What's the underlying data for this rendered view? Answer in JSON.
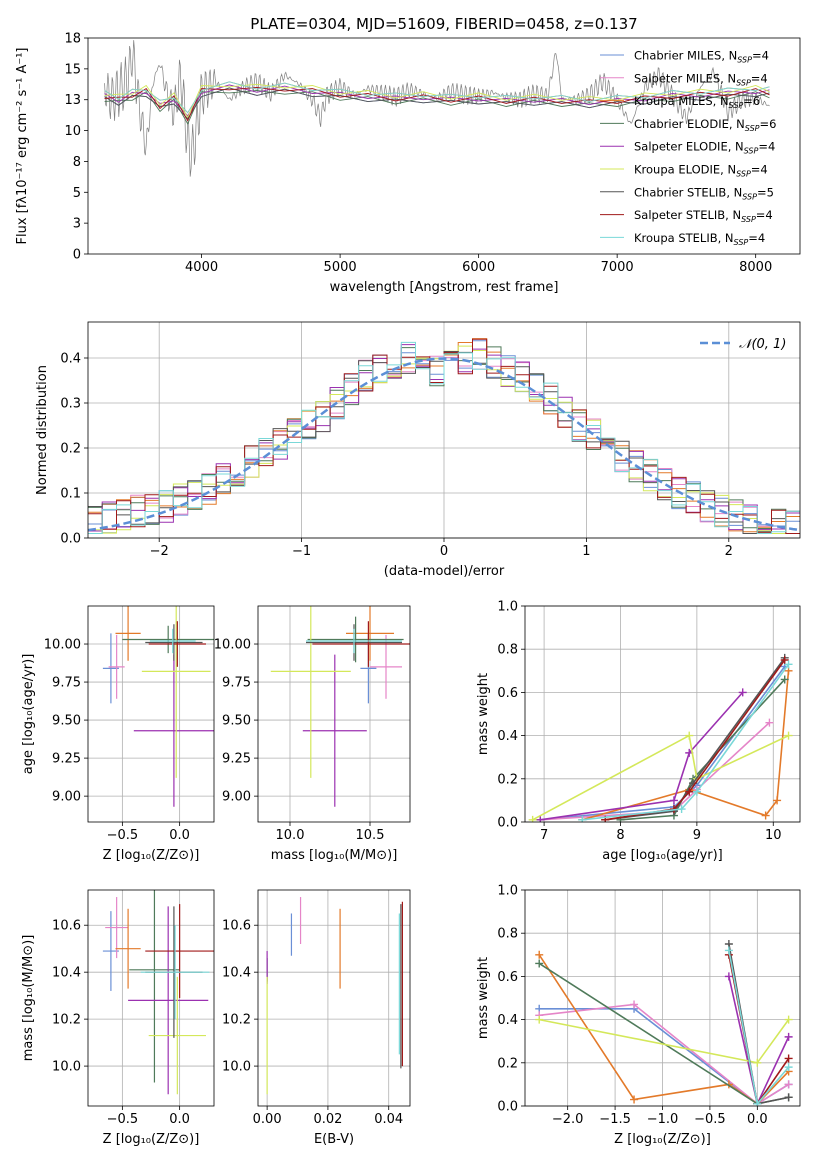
{
  "colors": {
    "Chabrier MILES": "#6a8fd6",
    "Salpeter MILES": "#e585c8",
    "Kroupa MILES": "#e37a2a",
    "Chabrier ELODIE": "#4f7a5a",
    "Salpeter ELODIE": "#9b31b0",
    "Kroupa ELODIE": "#d4e85a",
    "Chabrier STELIB": "#555555",
    "Salpeter STELIB": "#a01a1a",
    "Kroupa STELIB": "#7ad8d8",
    "normal_curve": "#5b8fd6"
  },
  "chart_data": [
    {
      "type": "line",
      "title": "PLATE=0304, MJD=51609, FIBERID=0458, z=0.137",
      "xlabel": "wavelength [Angstrom, rest frame]",
      "ylabel": "Flux [fλ10⁻¹⁷ erg cm⁻² s⁻¹ A⁻¹]",
      "xlim": [
        3180,
        8320
      ],
      "ylim": [
        0,
        17.5
      ],
      "xticks": [
        4000,
        5000,
        6000,
        7000,
        8000
      ],
      "yticks": [
        0.0,
        2.5,
        5.0,
        7.5,
        10.0,
        12.5,
        15.0,
        17.5
      ],
      "legend_loc": "upper-right",
      "legend": [
        {
          "prefix": "Chabrier MILES, N",
          "sub": "SSP",
          "suffix": "=4"
        },
        {
          "prefix": "Salpeter MILES, N",
          "sub": "SSP",
          "suffix": "=4"
        },
        {
          "prefix": "Kroupa MILES, N",
          "sub": "SSP",
          "suffix": "=6"
        },
        {
          "prefix": "Chabrier ELODIE, N",
          "sub": "SSP",
          "suffix": "=6"
        },
        {
          "prefix": "Salpeter ELODIE, N",
          "sub": "SSP",
          "suffix": "=4"
        },
        {
          "prefix": "Kroupa ELODIE, N",
          "sub": "SSP",
          "suffix": "=4"
        },
        {
          "prefix": "Chabrier STELIB, N",
          "sub": "SSP",
          "suffix": "=5"
        },
        {
          "prefix": "Salpeter STELIB, N",
          "sub": "SSP",
          "suffix": "=4"
        },
        {
          "prefix": "Kroupa STELIB, N",
          "sub": "SSP",
          "suffix": "=4"
        }
      ],
      "observed": {
        "x": [
          3300,
          3350,
          3400,
          3450,
          3480,
          3500,
          3550,
          3600,
          3650,
          3700,
          3750,
          3800,
          3850,
          3900,
          3930,
          3970,
          4000,
          4100,
          4200,
          4300,
          4400,
          4500,
          4600,
          4700,
          4800,
          4860,
          4900,
          5000,
          5100,
          5200,
          5300,
          5400,
          5500,
          5600,
          5700,
          5800,
          5900,
          6000,
          6100,
          6200,
          6300,
          6400,
          6500,
          6560,
          6600,
          6700,
          6800,
          6900,
          7000,
          7100,
          7200,
          7300,
          7400,
          7500,
          7600,
          7700,
          7800,
          7900,
          8000,
          8100
        ],
        "y": [
          13.5,
          12.5,
          13.2,
          13.8,
          14.8,
          16.5,
          12.0,
          8.5,
          14.0,
          15.5,
          13.0,
          11.5,
          14.5,
          9.0,
          8.0,
          10.5,
          13.0,
          14.0,
          12.5,
          13.5,
          14.0,
          13.0,
          14.5,
          13.8,
          12.5,
          11.0,
          12.8,
          13.6,
          12.9,
          13.4,
          13.1,
          12.7,
          13.3,
          13.0,
          12.6,
          13.2,
          12.9,
          12.8,
          13.1,
          12.7,
          12.5,
          13.0,
          12.8,
          16.5,
          12.6,
          12.5,
          12.9,
          14.0,
          12.5,
          10.5,
          13.5,
          14.5,
          12.8,
          11.0,
          13.5,
          14.8,
          11.5,
          12.5,
          12.6,
          12.0
        ]
      },
      "models": {
        "x": [
          3300,
          3400,
          3500,
          3600,
          3700,
          3800,
          3900,
          4000,
          4200,
          4400,
          4600,
          4800,
          5000,
          5200,
          5400,
          5600,
          5800,
          6000,
          6200,
          6400,
          6600,
          6800,
          7000,
          7200,
          7400,
          7600,
          7800,
          8000,
          8100
        ],
        "y": [
          12.8,
          12.5,
          12.9,
          13.2,
          12.0,
          12.6,
          11.0,
          13.2,
          13.5,
          13.3,
          13.4,
          13.2,
          12.9,
          12.8,
          12.6,
          12.7,
          12.5,
          12.6,
          12.4,
          12.5,
          12.4,
          12.3,
          12.4,
          12.6,
          12.8,
          12.9,
          13.0,
          13.2,
          13.1
        ]
      }
    },
    {
      "type": "line",
      "xlabel": "(data-model)/error",
      "ylabel": "Normed distribution",
      "xlim": [
        -2.5,
        2.5
      ],
      "ylim": [
        0,
        0.48
      ],
      "xticks": [
        -2,
        -1,
        0,
        1,
        2
      ],
      "yticks": [
        0.0,
        0.1,
        0.2,
        0.3,
        0.4
      ],
      "legend_loc": "upper-right",
      "curve_label": "𝒩(0, 1)",
      "bin_edges": [
        -2.5,
        -2.4,
        -2.3,
        -2.2,
        -2.1,
        -2.0,
        -1.9,
        -1.8,
        -1.7,
        -1.6,
        -1.5,
        -1.4,
        -1.3,
        -1.2,
        -1.1,
        -1.0,
        -0.9,
        -0.8,
        -0.7,
        -0.6,
        -0.5,
        -0.4,
        -0.3,
        -0.2,
        -0.1,
        0.0,
        0.1,
        0.2,
        0.3,
        0.4,
        0.5,
        0.6,
        0.7,
        0.8,
        0.9,
        1.0,
        1.1,
        1.2,
        1.3,
        1.4,
        1.5,
        1.6,
        1.7,
        1.8,
        1.9,
        2.0,
        2.1,
        2.2,
        2.3,
        2.4,
        2.5
      ],
      "hist_base": [
        0.04,
        0.045,
        0.05,
        0.06,
        0.065,
        0.07,
        0.085,
        0.095,
        0.11,
        0.13,
        0.15,
        0.17,
        0.19,
        0.21,
        0.23,
        0.25,
        0.27,
        0.3,
        0.33,
        0.36,
        0.38,
        0.39,
        0.4,
        0.39,
        0.37,
        0.38,
        0.4,
        0.41,
        0.39,
        0.37,
        0.36,
        0.33,
        0.31,
        0.28,
        0.25,
        0.23,
        0.2,
        0.18,
        0.16,
        0.14,
        0.12,
        0.1,
        0.09,
        0.07,
        0.06,
        0.05,
        0.04,
        0.035,
        0.03,
        0.025
      ]
    },
    {
      "type": "scatter",
      "xlabel": "Z [log₁₀(Z/Z⊙)]",
      "ylabel": "age  [log₁₀(age/yr)]",
      "xlim": [
        -0.8,
        0.3
      ],
      "ylim": [
        8.83,
        10.25
      ],
      "xticks": [
        -0.5,
        0.0
      ],
      "yticks": [
        9.0,
        9.25,
        9.5,
        9.75,
        10.0
      ],
      "points": [
        {
          "series": "Chabrier MILES",
          "x": -0.6,
          "xerr": 0.07,
          "y": 9.84,
          "yerr": 0.23
        },
        {
          "series": "Salpeter MILES",
          "x": -0.55,
          "xerr": 0.07,
          "y": 9.85,
          "yerr": 0.21
        },
        {
          "series": "Kroupa MILES",
          "x": -0.45,
          "xerr": 0.11,
          "y": 10.07,
          "yerr": 0.18
        },
        {
          "series": "Chabrier ELODIE",
          "x": -0.1,
          "xerr": 0.4,
          "y": 10.03,
          "yerr": 0.09
        },
        {
          "series": "Salpeter ELODIE",
          "x": -0.05,
          "xerr": 0.35,
          "y": 9.43,
          "yerr": 0.5
        },
        {
          "series": "Kroupa ELODIE",
          "x": -0.03,
          "xerr": 0.3,
          "y": 9.82,
          "yerr": 0.7
        },
        {
          "series": "Chabrier STELIB",
          "x": -0.05,
          "xerr": 0.25,
          "y": 10.01,
          "yerr": 0.12
        },
        {
          "series": "Salpeter STELIB",
          "x": -0.02,
          "xerr": 0.25,
          "y": 10.0,
          "yerr": 0.15
        },
        {
          "series": "Kroupa STELIB",
          "x": -0.06,
          "xerr": 0.2,
          "y": 10.02,
          "yerr": 0.08
        }
      ]
    },
    {
      "type": "scatter",
      "xlabel": "mass [log₁₀(M/M⊙)]",
      "ylabel": "",
      "xlim": [
        9.8,
        10.75
      ],
      "ylim": [
        8.83,
        10.25
      ],
      "xticks": [
        10.0,
        10.5
      ],
      "yticks": [
        9.0,
        9.25,
        9.5,
        9.75,
        10.0
      ],
      "points": [
        {
          "series": "Chabrier MILES",
          "x": 10.49,
          "xerr": 0.05,
          "y": 9.84,
          "yerr": 0.23
        },
        {
          "series": "Salpeter MILES",
          "x": 10.6,
          "xerr": 0.1,
          "y": 9.85,
          "yerr": 0.21
        },
        {
          "series": "Kroupa MILES",
          "x": 10.5,
          "xerr": 0.15,
          "y": 10.07,
          "yerr": 0.18
        },
        {
          "series": "Chabrier ELODIE",
          "x": 10.41,
          "xerr": 0.3,
          "y": 10.03,
          "yerr": 0.15
        },
        {
          "series": "Salpeter ELODIE",
          "x": 10.28,
          "xerr": 0.2,
          "y": 9.43,
          "yerr": 0.5
        },
        {
          "series": "Kroupa ELODIE",
          "x": 10.13,
          "xerr": 0.25,
          "y": 9.82,
          "yerr": 0.7
        },
        {
          "series": "Chabrier STELIB",
          "x": 10.4,
          "xerr": 0.3,
          "y": 10.01,
          "yerr": 0.12
        },
        {
          "series": "Salpeter STELIB",
          "x": 10.49,
          "xerr": 0.35,
          "y": 10.0,
          "yerr": 0.15
        },
        {
          "series": "Kroupa STELIB",
          "x": 10.4,
          "xerr": 0.3,
          "y": 10.02,
          "yerr": 0.08
        }
      ]
    },
    {
      "type": "line",
      "xlabel": "age  [log₁₀(age/yr)]",
      "ylabel": "mass weight",
      "xlim": [
        6.75,
        10.35
      ],
      "ylim": [
        0,
        1.0
      ],
      "xticks": [
        7,
        8,
        9,
        10
      ],
      "yticks": [
        0.0,
        0.2,
        0.4,
        0.6,
        0.8,
        1.0
      ],
      "series": [
        {
          "name": "Chabrier MILES",
          "x": [
            6.95,
            8.7,
            9.0,
            10.15
          ],
          "y": [
            0.01,
            0.07,
            0.17,
            0.72
          ]
        },
        {
          "name": "Salpeter MILES",
          "x": [
            6.95,
            8.7,
            9.0,
            9.95
          ],
          "y": [
            0.01,
            0.05,
            0.15,
            0.46
          ]
        },
        {
          "name": "Kroupa MILES",
          "x": [
            7.5,
            8.9,
            9.9,
            10.05,
            10.2
          ],
          "y": [
            0.01,
            0.15,
            0.03,
            0.1,
            0.7
          ]
        },
        {
          "name": "Chabrier ELODIE",
          "x": [
            8.0,
            8.7,
            8.95,
            10.15
          ],
          "y": [
            0.01,
            0.03,
            0.2,
            0.66
          ]
        },
        {
          "name": "Salpeter ELODIE",
          "x": [
            6.95,
            8.7,
            8.9,
            9.6
          ],
          "y": [
            0.01,
            0.1,
            0.32,
            0.6
          ]
        },
        {
          "name": "Kroupa ELODIE",
          "x": [
            6.85,
            8.9,
            9.0,
            10.2
          ],
          "y": [
            0.01,
            0.4,
            0.2,
            0.4
          ]
        },
        {
          "name": "Chabrier STELIB",
          "x": [
            7.8,
            8.7,
            8.95,
            10.15
          ],
          "y": [
            0.01,
            0.05,
            0.18,
            0.76
          ]
        },
        {
          "name": "Salpeter STELIB",
          "x": [
            7.8,
            8.7,
            8.9,
            10.15
          ],
          "y": [
            0.01,
            0.06,
            0.14,
            0.75
          ]
        },
        {
          "name": "Kroupa STELIB",
          "x": [
            7.5,
            8.8,
            9.0,
            10.2
          ],
          "y": [
            0.01,
            0.06,
            0.14,
            0.73
          ]
        }
      ]
    },
    {
      "type": "scatter",
      "xlabel": "Z [log₁₀(Z/Z⊙)]",
      "ylabel": "mass [log₁₀(M/M⊙)]",
      "xlim": [
        -0.8,
        0.3
      ],
      "ylim": [
        9.83,
        10.75
      ],
      "xticks": [
        -0.5,
        0.0
      ],
      "yticks": [
        10.0,
        10.2,
        10.4,
        10.6
      ],
      "points": [
        {
          "series": "Chabrier MILES",
          "x": -0.6,
          "xerr": 0.07,
          "y": 10.49,
          "yerr": 0.17
        },
        {
          "series": "Salpeter MILES",
          "x": -0.55,
          "xerr": 0.1,
          "y": 10.59,
          "yerr": 0.13
        },
        {
          "series": "Kroupa MILES",
          "x": -0.45,
          "xerr": 0.11,
          "y": 10.5,
          "yerr": 0.17
        },
        {
          "series": "Chabrier ELODIE",
          "x": -0.22,
          "xerr": 0.22,
          "y": 10.41,
          "yerr": 0.48
        },
        {
          "series": "Salpeter ELODIE",
          "x": -0.1,
          "xerr": 0.35,
          "y": 10.28,
          "yerr": 0.4
        },
        {
          "series": "Kroupa ELODIE",
          "x": -0.02,
          "xerr": 0.25,
          "y": 10.13,
          "yerr": 0.25
        },
        {
          "series": "Chabrier STELIB",
          "x": -0.05,
          "xerr": 0.25,
          "y": 10.4,
          "yerr": 0.28
        },
        {
          "series": "Salpeter STELIB",
          "x": 0.0,
          "xerr": 0.3,
          "y": 10.49,
          "yerr": 0.2
        },
        {
          "series": "Kroupa STELIB",
          "x": -0.04,
          "xerr": 0.3,
          "y": 10.4,
          "yerr": 0.2
        }
      ]
    },
    {
      "type": "scatter",
      "xlabel": "E(B-V)",
      "ylabel": "",
      "xlim": [
        -0.003,
        0.047
      ],
      "ylim": [
        9.83,
        10.75
      ],
      "xticks": [
        0.0,
        0.02,
        0.04
      ],
      "yticks": [
        10.0,
        10.2,
        10.4,
        10.6
      ],
      "points": [
        {
          "series": "Chabrier MILES",
          "x": 0.008,
          "xerr": 0,
          "y": 10.56,
          "yerr": 0.09
        },
        {
          "series": "Salpeter MILES",
          "x": 0.011,
          "xerr": 0,
          "y": 10.62,
          "yerr": 0.1
        },
        {
          "series": "Kroupa MILES",
          "x": 0.024,
          "xerr": 0,
          "y": 10.5,
          "yerr": 0.17
        },
        {
          "series": "Chabrier ELODIE",
          "x": 0.0,
          "xerr": 0,
          "y": 10.41,
          "yerr": 0.05
        },
        {
          "series": "Salpeter ELODIE",
          "x": 0.0,
          "xerr": 0,
          "y": 10.42,
          "yerr": 0.07
        },
        {
          "series": "Kroupa ELODIE",
          "x": 0.0,
          "xerr": 0,
          "y": 10.13,
          "yerr": 0.25
        },
        {
          "series": "Chabrier STELIB",
          "x": 0.044,
          "xerr": 0,
          "y": 10.34,
          "yerr": 0.35
        },
        {
          "series": "Salpeter STELIB",
          "x": 0.0445,
          "xerr": 0,
          "y": 10.35,
          "yerr": 0.35
        },
        {
          "series": "Kroupa STELIB",
          "x": 0.0435,
          "xerr": 0,
          "y": 10.35,
          "yerr": 0.3
        }
      ]
    },
    {
      "type": "line",
      "xlabel": "Z [log₁₀(Z/Z⊙)]",
      "ylabel": "mass weight",
      "xlim": [
        -2.45,
        0.45
      ],
      "ylim": [
        0,
        1.0
      ],
      "xticks": [
        -2.0,
        -1.5,
        -1.0,
        -0.5,
        0.0
      ],
      "yticks": [
        0.0,
        0.2,
        0.4,
        0.6,
        0.8,
        1.0
      ],
      "series": [
        {
          "name": "Chabrier MILES",
          "x": [
            -2.3,
            -1.3,
            0.0,
            0.33
          ],
          "y": [
            0.45,
            0.45,
            0.01,
            0.1
          ]
        },
        {
          "name": "Salpeter MILES",
          "x": [
            -2.3,
            -1.3,
            0.0,
            0.33
          ],
          "y": [
            0.42,
            0.47,
            0.01,
            0.1
          ]
        },
        {
          "name": "Kroupa MILES",
          "x": [
            -2.3,
            -1.3,
            -0.3,
            0.0,
            0.33
          ],
          "y": [
            0.7,
            0.03,
            0.1,
            0.01,
            0.16
          ]
        },
        {
          "name": "Chabrier ELODIE",
          "x": [
            -2.3,
            0.0,
            0.33
          ],
          "y": [
            0.66,
            0.01,
            0.04
          ]
        },
        {
          "name": "Salpeter ELODIE",
          "x": [
            -0.3,
            0.0,
            0.33
          ],
          "y": [
            0.6,
            0.01,
            0.32
          ]
        },
        {
          "name": "Kroupa ELODIE",
          "x": [
            -2.3,
            0.0,
            0.33
          ],
          "y": [
            0.4,
            0.2,
            0.4
          ]
        },
        {
          "name": "Chabrier STELIB",
          "x": [
            -0.3,
            0.0,
            0.33
          ],
          "y": [
            0.75,
            0.01,
            0.04
          ]
        },
        {
          "name": "Salpeter STELIB",
          "x": [
            -0.3,
            0.0,
            0.33
          ],
          "y": [
            0.7,
            0.01,
            0.22
          ]
        },
        {
          "name": "Kroupa STELIB",
          "x": [
            -0.3,
            0.0,
            0.33
          ],
          "y": [
            0.72,
            0.01,
            0.18
          ]
        }
      ]
    }
  ]
}
